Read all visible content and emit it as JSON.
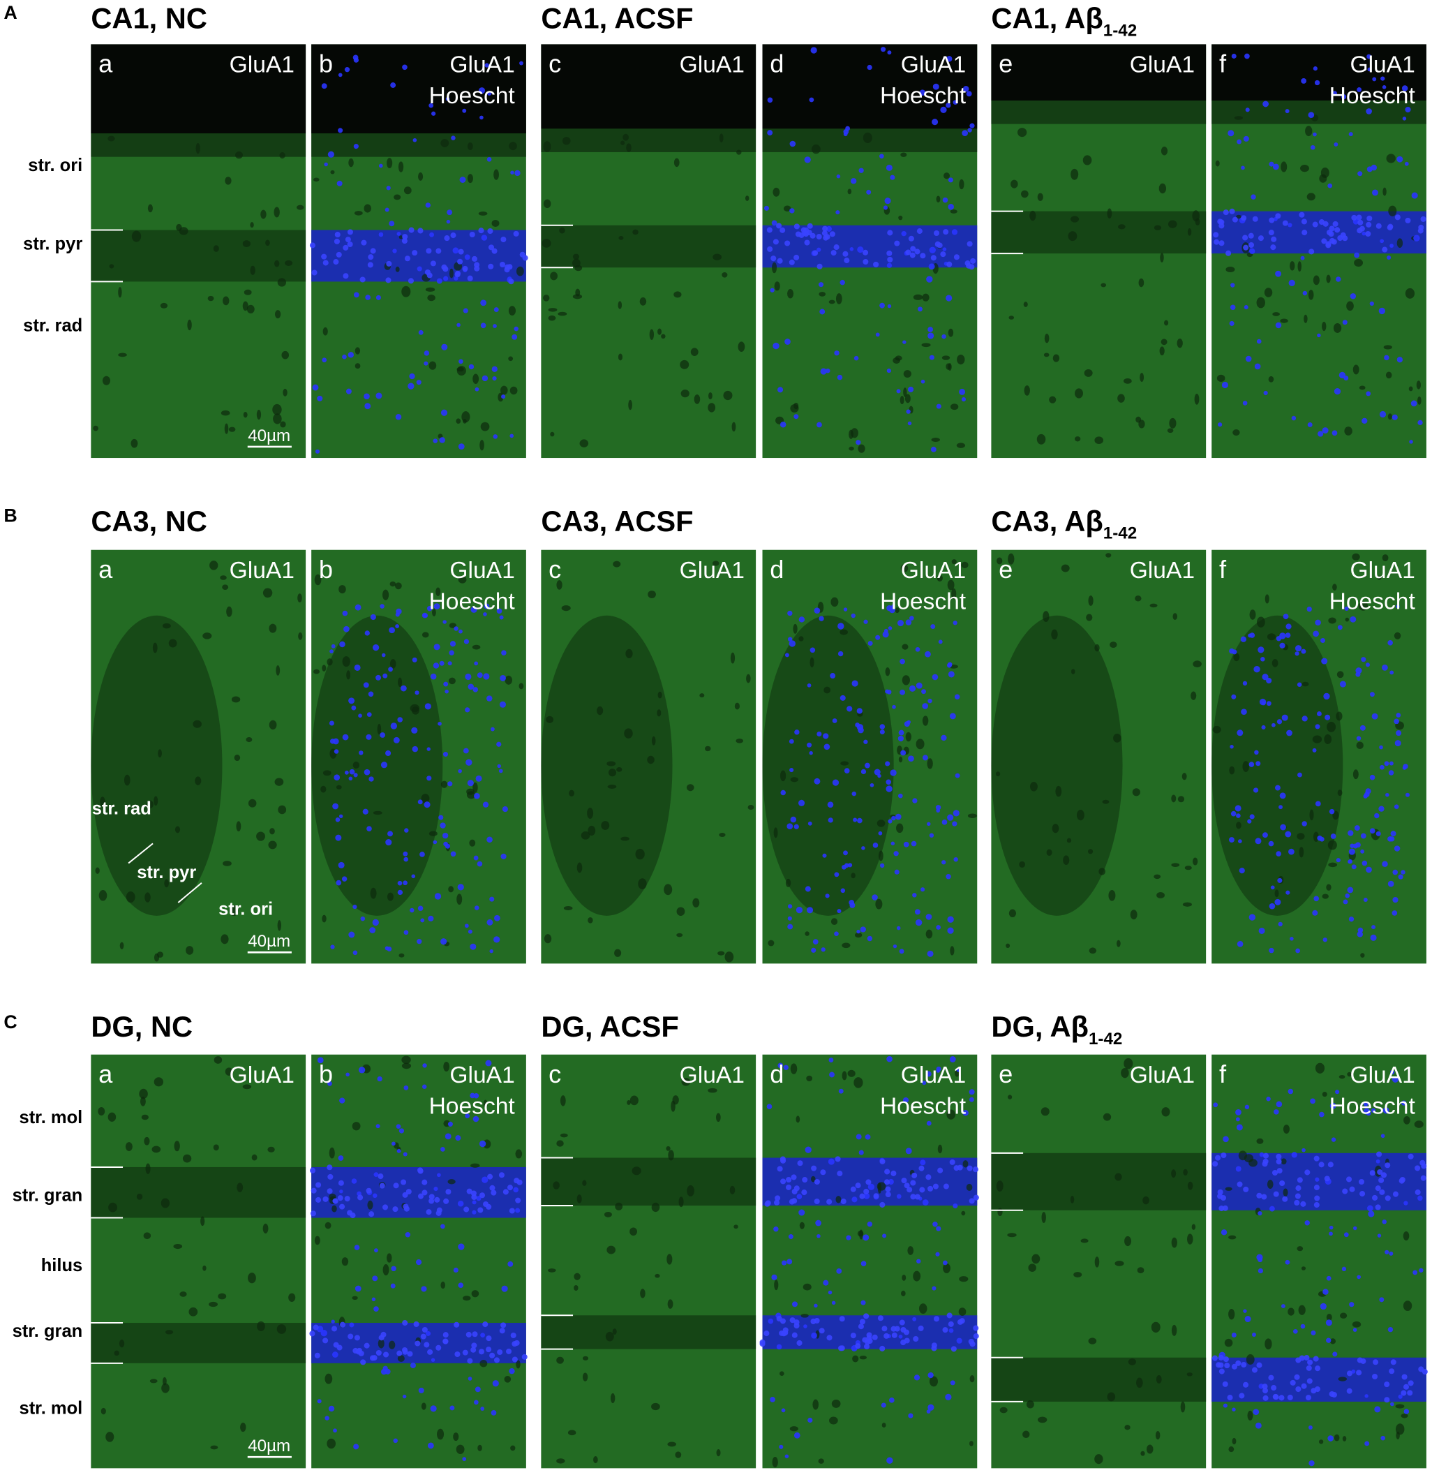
{
  "sections": [
    {
      "label": "A",
      "groups": [
        {
          "title": "CA1, NC",
          "panels": [
            {
              "letter": "a",
              "labels": [
                "GluA1"
              ]
            },
            {
              "letter": "b",
              "labels": [
                "GluA1",
                "Hoescht"
              ]
            }
          ]
        },
        {
          "title": "CA1, ACSF",
          "panels": [
            {
              "letter": "c",
              "labels": [
                "GluA1"
              ]
            },
            {
              "letter": "d",
              "labels": [
                "GluA1",
                "Hoescht"
              ]
            }
          ]
        },
        {
          "title": "CA1, Aβ",
          "title_sub": "1-42",
          "panels": [
            {
              "letter": "e",
              "labels": [
                "GluA1"
              ]
            },
            {
              "letter": "f",
              "labels": [
                "GluA1",
                "Hoescht"
              ]
            }
          ]
        }
      ],
      "layer_labels": [
        "str. ori",
        "str. pyr",
        "str. rad"
      ],
      "scale_bar": "40µm"
    },
    {
      "label": "B",
      "groups": [
        {
          "title": "CA3, NC",
          "panels": [
            {
              "letter": "a",
              "labels": [
                "GluA1"
              ]
            },
            {
              "letter": "b",
              "labels": [
                "GluA1",
                "Hoescht"
              ]
            }
          ]
        },
        {
          "title": "CA3, ACSF",
          "panels": [
            {
              "letter": "c",
              "labels": [
                "GluA1"
              ]
            },
            {
              "letter": "d",
              "labels": [
                "GluA1",
                "Hoescht"
              ]
            }
          ]
        },
        {
          "title": "CA3, Aβ",
          "title_sub": "1-42",
          "panels": [
            {
              "letter": "e",
              "labels": [
                "GluA1"
              ]
            },
            {
              "letter": "f",
              "labels": [
                "GluA1",
                "Hoescht"
              ]
            }
          ]
        }
      ],
      "layer_labels": [
        "str. rad",
        "str. pyr",
        "str. ori"
      ],
      "scale_bar": "40µm"
    },
    {
      "label": "C",
      "groups": [
        {
          "title": "DG, NC",
          "panels": [
            {
              "letter": "a",
              "labels": [
                "GluA1"
              ]
            },
            {
              "letter": "b",
              "labels": [
                "GluA1",
                "Hoescht"
              ]
            }
          ]
        },
        {
          "title": "DG, ACSF",
          "panels": [
            {
              "letter": "c",
              "labels": [
                "GluA1"
              ]
            },
            {
              "letter": "d",
              "labels": [
                "GluA1",
                "Hoescht"
              ]
            }
          ]
        },
        {
          "title": "DG, Aβ",
          "title_sub": "1-42",
          "panels": [
            {
              "letter": "e",
              "labels": [
                "GluA1"
              ]
            },
            {
              "letter": "f",
              "labels": [
                "GluA1",
                "Hoescht"
              ]
            }
          ]
        }
      ],
      "layer_labels": [
        "str. mol",
        "str. gran",
        "hilus",
        "str. gran",
        "str. mol"
      ],
      "scale_bar": "40µm"
    }
  ]
}
